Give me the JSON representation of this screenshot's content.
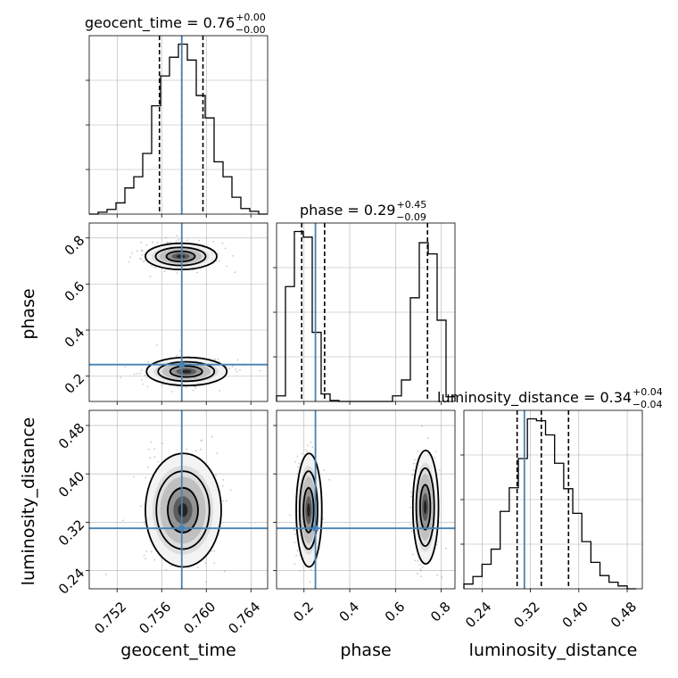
{
  "chart_data": {
    "type": "corner",
    "parameters": [
      "geocent_time",
      "phase",
      "luminosity_distance"
    ],
    "truth": {
      "geocent_time": 0.7578,
      "phase": 0.25,
      "luminosity_distance": 0.31
    },
    "panels": {
      "geocent_time": {
        "title": "geocent_time = 0.76",
        "title_sup": "+0.00",
        "title_sub": "−0.00",
        "xlim": [
          0.7495,
          0.7655
        ],
        "ticks": [
          "0.752",
          "0.756",
          "0.760",
          "0.764"
        ],
        "tick_values": [
          0.752,
          0.756,
          0.76,
          0.764
        ],
        "quantiles": [
          0.7558,
          0.7578,
          0.7597
        ],
        "hist_edges": [
          0.7495,
          0.7503,
          0.7511,
          0.7519,
          0.7527,
          0.7535,
          0.7543,
          0.7551,
          0.7559,
          0.7567,
          0.7575,
          0.7583,
          0.7591,
          0.7599,
          0.7607,
          0.7615,
          0.7623,
          0.7631,
          0.7639,
          0.7647,
          0.7655
        ],
        "hist_counts": [
          0,
          2,
          5,
          12,
          28,
          40,
          65,
          116,
          148,
          168,
          182,
          165,
          127,
          103,
          56,
          40,
          18,
          6,
          3,
          0
        ]
      },
      "phase": {
        "title": "phase = 0.29",
        "title_sup": "+0.45",
        "title_sub": "−0.09",
        "xlim": [
          0.08,
          0.86
        ],
        "ticks": [
          "0.2",
          "0.4",
          "0.6",
          "0.8"
        ],
        "tick_values": [
          0.2,
          0.4,
          0.6,
          0.8
        ],
        "quantiles": [
          0.19,
          0.29,
          0.74
        ],
        "hist_edges": [
          0.08,
          0.119,
          0.158,
          0.197,
          0.236,
          0.275,
          0.314,
          0.353,
          0.392,
          0.431,
          0.47,
          0.509,
          0.548,
          0.587,
          0.626,
          0.665,
          0.704,
          0.743,
          0.782,
          0.821,
          0.86
        ],
        "hist_counts": [
          6,
          123,
          182,
          176,
          74,
          8,
          1,
          0,
          0,
          0,
          0,
          0,
          0,
          6,
          23,
          111,
          170,
          158,
          87,
          5
        ]
      },
      "luminosity_distance": {
        "title": "luminosity_distance = 0.34",
        "title_sup": "+0.04",
        "title_sub": "−0.04",
        "xlim": [
          0.21,
          0.505
        ],
        "ticks": [
          "0.24",
          "0.32",
          "0.40",
          "0.48"
        ],
        "tick_values": [
          0.24,
          0.32,
          0.4,
          0.48
        ],
        "quantiles": [
          0.298,
          0.338,
          0.383
        ],
        "hist_edges": [
          0.21,
          0.225,
          0.24,
          0.255,
          0.27,
          0.285,
          0.3,
          0.315,
          0.33,
          0.345,
          0.36,
          0.375,
          0.39,
          0.405,
          0.42,
          0.435,
          0.45,
          0.465,
          0.48,
          0.495
        ],
        "hist_counts": [
          5,
          13,
          26,
          42,
          82,
          107,
          138,
          180,
          178,
          163,
          133,
          106,
          80,
          50,
          28,
          14,
          7,
          3,
          0
        ]
      }
    },
    "joint": {
      "phase_vs_geocent_time": {
        "x": "geocent_time",
        "y": "phase",
        "modes": [
          {
            "cx": 0.7577,
            "cy": 0.72,
            "sx": 0.0016,
            "sy": 0.028
          },
          {
            "cx": 0.7582,
            "cy": 0.22,
            "sx": 0.0018,
            "sy": 0.03
          }
        ],
        "ylim": [
          0.09,
          0.865
        ],
        "yticks": [
          "0.2",
          "0.4",
          "0.6",
          "0.8"
        ],
        "ytick_values": [
          0.2,
          0.4,
          0.6,
          0.8
        ]
      },
      "luminosity_distance_vs_geocent_time": {
        "x": "geocent_time",
        "y": "luminosity_distance",
        "modes": [
          {
            "cx": 0.7579,
            "cy": 0.34,
            "sx": 0.0017,
            "sy": 0.046
          }
        ],
        "ylim": [
          0.21,
          0.505
        ],
        "yticks": [
          "0.24",
          "0.32",
          "0.40",
          "0.48"
        ],
        "ytick_values": [
          0.24,
          0.32,
          0.4,
          0.48
        ]
      },
      "luminosity_distance_vs_phase": {
        "x": "phase",
        "y": "luminosity_distance",
        "modes": [
          {
            "cx": 0.22,
            "cy": 0.34,
            "sx": 0.028,
            "sy": 0.046
          },
          {
            "cx": 0.73,
            "cy": 0.345,
            "sx": 0.028,
            "sy": 0.046
          }
        ]
      }
    },
    "colors": {
      "truth": "#4682b4",
      "hist": "#000000",
      "grid": "#b0b0b0",
      "samples": "#9a9a9a"
    }
  }
}
